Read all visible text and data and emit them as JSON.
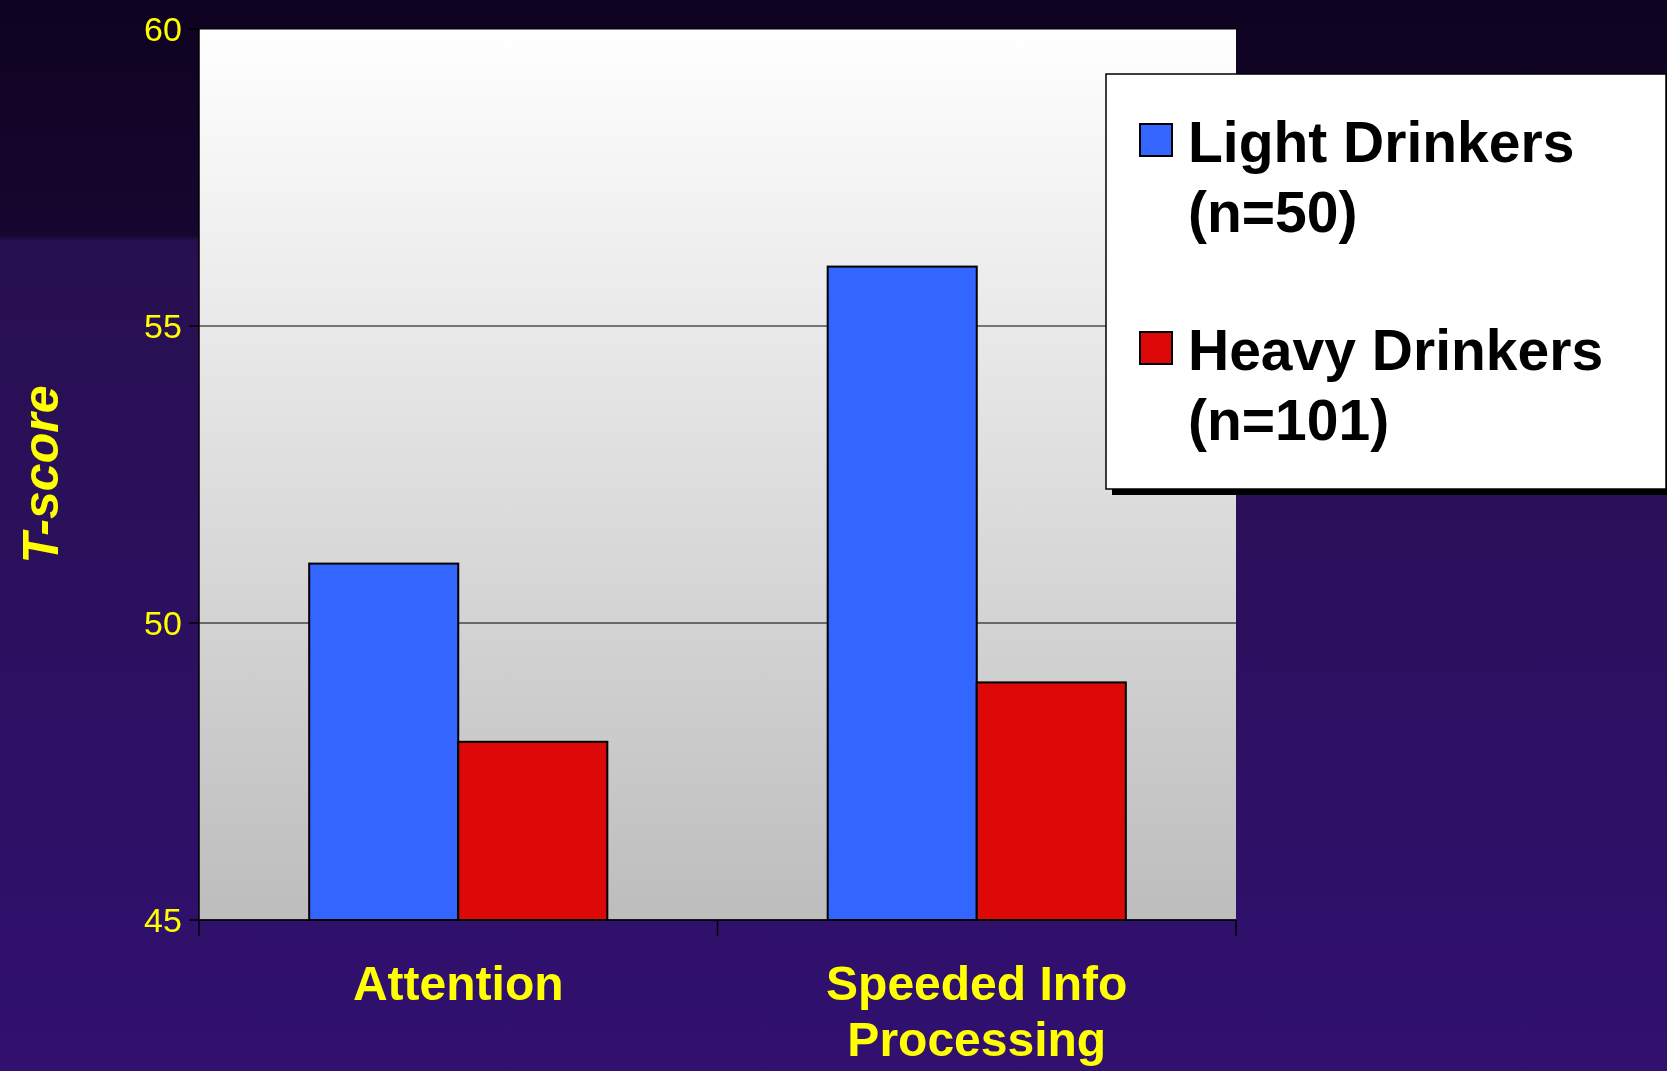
{
  "chart_data": {
    "type": "bar",
    "ylabel": "T-score",
    "categories": [
      "Attention",
      "Speeded Info Processing"
    ],
    "series": [
      {
        "name": "Light Drinkers (n=50)",
        "color": "#3366ff",
        "values": [
          51,
          56
        ]
      },
      {
        "name": "Heavy Drinkers (n=101)",
        "color": "#dd0808",
        "values": [
          48,
          49
        ]
      }
    ],
    "ylim": [
      45,
      60
    ],
    "yticks": [
      45,
      50,
      55,
      60
    ],
    "grid": "y",
    "legend": "top right"
  }
}
